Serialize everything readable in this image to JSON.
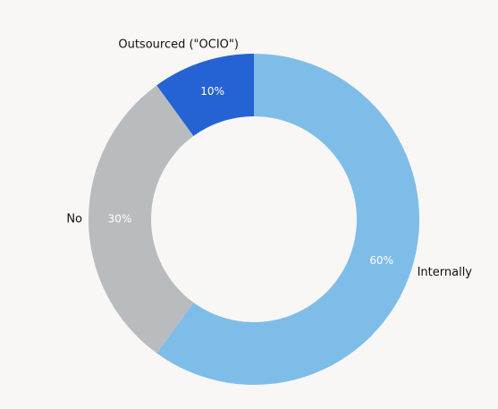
{
  "chart_data": {
    "type": "donut",
    "categories": [
      "Internally",
      "No",
      "Outsourced (\"OCIO\")"
    ],
    "values": [
      60,
      30,
      10
    ],
    "value_labels": [
      "60%",
      "30%",
      "10%"
    ],
    "colors": [
      "#7fbde9",
      "#b9bcbe",
      "#2563d4"
    ]
  }
}
